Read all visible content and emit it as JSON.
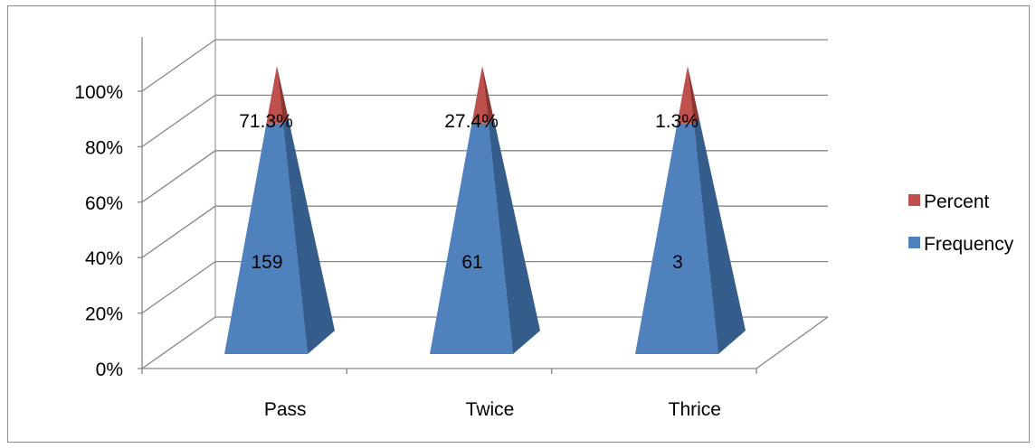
{
  "chart_data": {
    "type": "bar",
    "shape": "stacked-3d-pyramid",
    "categories": [
      "Pass",
      "Twice",
      "Thrice"
    ],
    "series": [
      {
        "name": "Frequency",
        "values": [
          159,
          61,
          3
        ],
        "labels": [
          "159",
          "61",
          "3"
        ],
        "color": "#4f81bd",
        "shade": "#355d8c"
      },
      {
        "name": "Percent",
        "values": [
          71.3,
          27.4,
          1.3
        ],
        "labels": [
          "71.3%",
          "27.4%",
          "1.3%"
        ],
        "color": "#c0504d",
        "shade": "#8c3533"
      }
    ],
    "stack_split": 0.8,
    "y_ticks": [
      "0%",
      "20%",
      "40%",
      "60%",
      "80%",
      "100%"
    ],
    "ylim": [
      0,
      1
    ],
    "grid": true,
    "legend_position": "right",
    "legend_order": [
      "Percent",
      "Frequency"
    ]
  }
}
